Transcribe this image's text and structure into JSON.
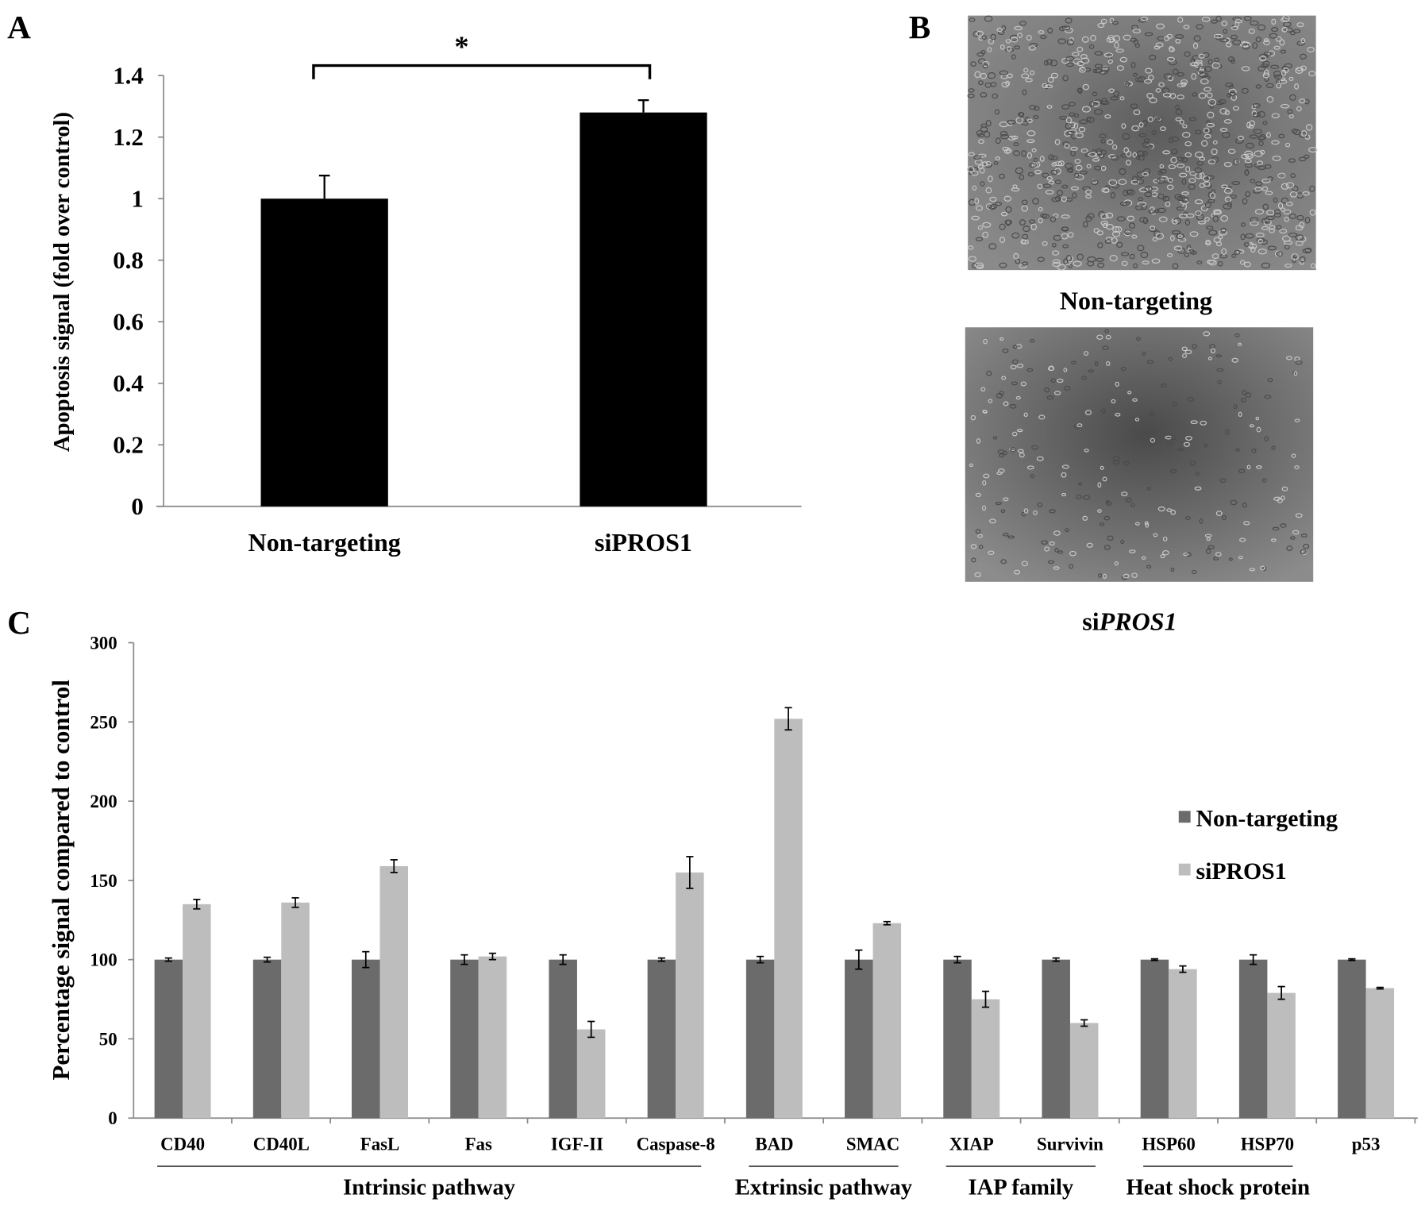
{
  "panel_labels": {
    "a": "A",
    "b": "B",
    "c": "C"
  },
  "chart_data": [
    {
      "type": "bar",
      "panel": "A",
      "ylabel": "Apoptosis signal (fold over control)",
      "xlabel": "",
      "ylim": [
        0,
        1.4
      ],
      "yticks": [
        "0",
        "0.2",
        "0.4",
        "0.6",
        "0.8",
        "1",
        "1.2",
        "1.4"
      ],
      "categories": [
        "Non-targeting",
        "siPROS1"
      ],
      "values": [
        1.0,
        1.28
      ],
      "errors": [
        0.075,
        0.04
      ],
      "bar_color": "#000000",
      "significance": {
        "between": [
          "Non-targeting",
          "siPROS1"
        ],
        "label": "*"
      },
      "grid": false
    },
    {
      "type": "bar",
      "panel": "C",
      "ylabel": "Percentage signal compared to control",
      "xlabel": "",
      "ylim": [
        0,
        300
      ],
      "yticks": [
        "0",
        "50",
        "100",
        "150",
        "200",
        "250",
        "300"
      ],
      "categories": [
        "CD40",
        "CD40L",
        "FasL",
        "Fas",
        "IGF-II",
        "Caspase-8",
        "BAD",
        "SMAC",
        "XIAP",
        "Survivin",
        "HSP60",
        "HSP70",
        "p53"
      ],
      "series": [
        {
          "name": "Non-targeting",
          "color": "#6b6b6b",
          "values": [
            100,
            100,
            100,
            100,
            100,
            100,
            100,
            100,
            100,
            100,
            100,
            100,
            100
          ],
          "errors": [
            1,
            1.5,
            5,
            3,
            3,
            1,
            2,
            6,
            2,
            1,
            0.5,
            3,
            0.5
          ]
        },
        {
          "name": "siPROS1",
          "color": "#bdbdbd",
          "values": [
            135,
            136,
            159,
            102,
            56,
            155,
            252,
            123,
            75,
            60,
            94,
            79,
            82
          ],
          "errors": [
            3,
            3,
            4,
            2,
            5,
            10,
            7,
            1,
            5,
            2,
            2,
            4,
            0.5
          ]
        }
      ],
      "groups": [
        {
          "label": "Intrinsic pathway",
          "from": "CD40",
          "to": "Caspase-8"
        },
        {
          "label": "Extrinsic pathway",
          "from": "BAD",
          "to": "SMAC"
        },
        {
          "label": "IAP family",
          "from": "XIAP",
          "to": "Survivin"
        },
        {
          "label": "Heat shock protein",
          "from": "HSP60",
          "to": "HSP70"
        }
      ],
      "legend_position": "right",
      "grid": false
    }
  ],
  "panel_b": {
    "images": [
      {
        "caption": "Non-targeting",
        "density": "high"
      },
      {
        "caption_prefix": "si",
        "caption_italic": "PROS1",
        "density": "low"
      }
    ]
  }
}
